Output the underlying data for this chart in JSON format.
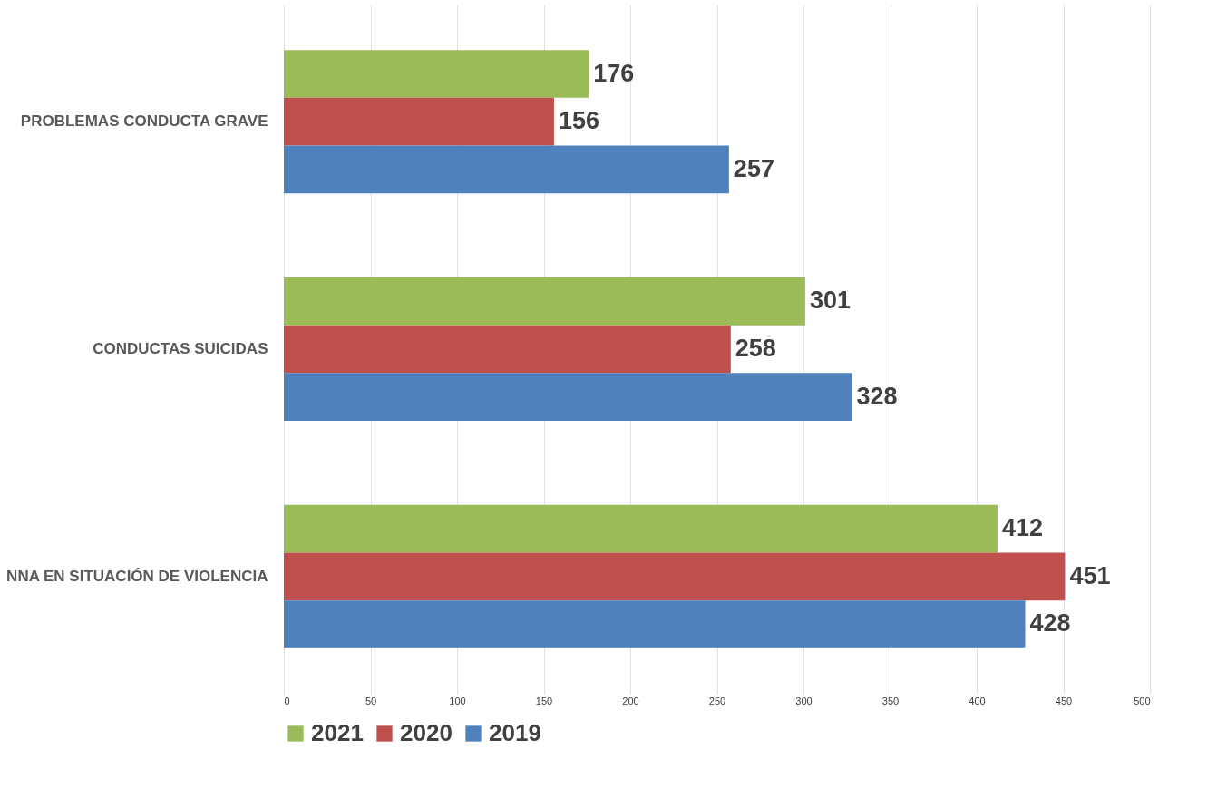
{
  "chart_data": {
    "type": "bar",
    "orientation": "horizontal",
    "categories": [
      "PROBLEMAS CONDUCTA GRAVE",
      "CONDUCTAS SUICIDAS",
      "NNA EN SITUACIÓN DE VIOLENCIA"
    ],
    "series": [
      {
        "name": "2021",
        "color": "#9bbb59",
        "values": [
          176,
          301,
          412
        ]
      },
      {
        "name": "2020",
        "color": "#c0504d",
        "values": [
          156,
          258,
          451
        ]
      },
      {
        "name": "2019",
        "color": "#4f81bd",
        "values": [
          257,
          328,
          428
        ]
      }
    ],
    "xlim": [
      0,
      500
    ],
    "xticks": [
      0,
      50,
      100,
      150,
      200,
      250,
      300,
      350,
      400,
      450,
      500
    ],
    "grid": "x",
    "legend": "bottom",
    "data_labels": true
  }
}
